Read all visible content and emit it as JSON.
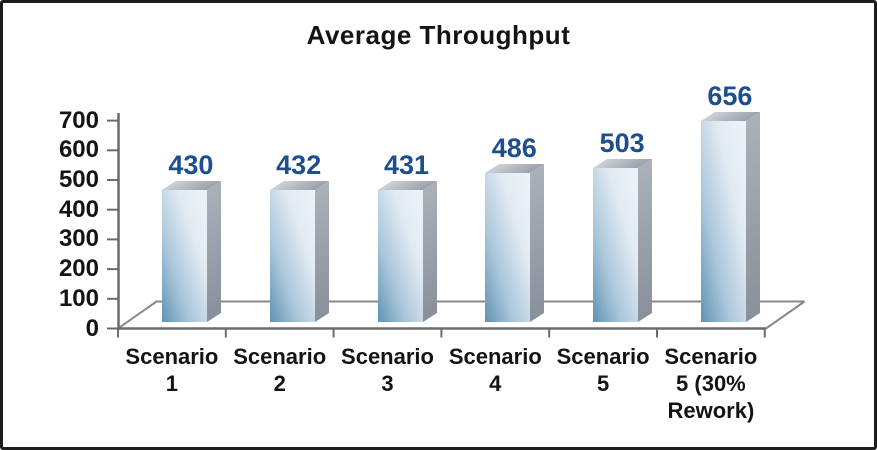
{
  "frame": {
    "background": "#ffffff",
    "border_color": "#1c1c1c"
  },
  "chart_data": {
    "type": "bar",
    "projection": "3d",
    "title": "Average Throughput",
    "categories": [
      "Scenario 1",
      "Scenario 2",
      "Scenario 3",
      "Scenario 4",
      "Scenario 5",
      "Scenario 5 (30% Rework)"
    ],
    "category_label_lines": [
      [
        "Scenario",
        "1"
      ],
      [
        "Scenario",
        "2"
      ],
      [
        "Scenario",
        "3"
      ],
      [
        "Scenario",
        "4"
      ],
      [
        "Scenario",
        "5"
      ],
      [
        "Scenario",
        "5 (30%",
        "Rework)"
      ]
    ],
    "values": [
      430,
      432,
      431,
      486,
      503,
      656
    ],
    "value_labels": [
      "430",
      "432",
      "431",
      "486",
      "503",
      "656"
    ],
    "xlabel": "",
    "ylabel": "",
    "ylim": [
      0,
      700
    ],
    "yticks": [
      0,
      100,
      200,
      300,
      400,
      500,
      600,
      700
    ],
    "grid": false,
    "legend": false
  },
  "colors": {
    "title_text": "#141414",
    "axis_text": "#141414",
    "value_label": "#1f4e8f",
    "axis_line": "#6b6b6b",
    "floor_line": "#898989",
    "bar_front_dark": "#5f93b2",
    "bar_front_mid": "#aac6da",
    "bar_front_light": "#e2ebf3",
    "bar_front_lightest": "#eef3f8",
    "bar_side_top": "#abb1b9",
    "bar_side_bottom": "#89909b",
    "bar_top_light": "#cdd1d7",
    "bar_top_dark": "#9aa0a9"
  }
}
